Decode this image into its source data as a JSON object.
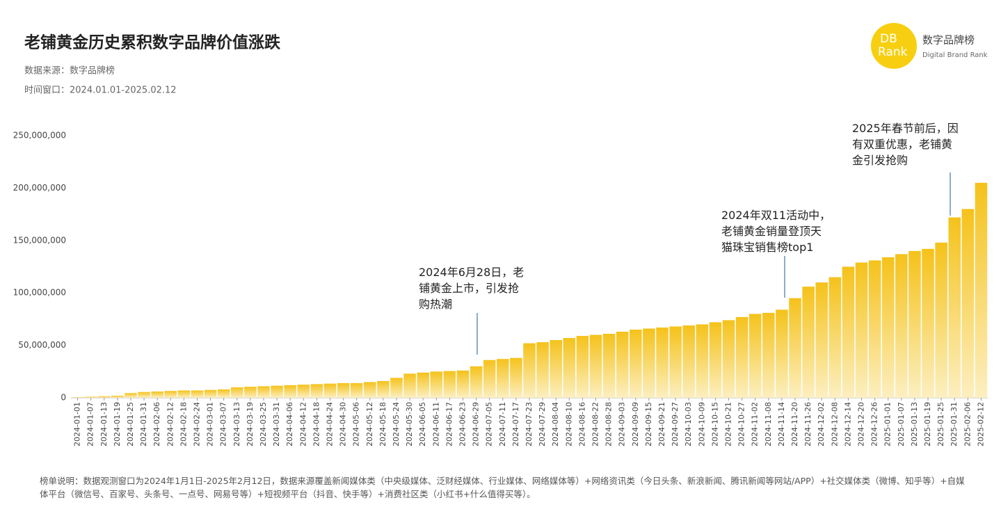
{
  "chart_data": {
    "type": "bar",
    "title": "老铺黄金历史累积数字品牌价值涨跌",
    "source": "数据来源：数字品牌榜",
    "time_window": "时间窗口：2024.01.01-2025.02.12",
    "categories": [
      "2024-01-01",
      "2024-01-07",
      "2024-01-13",
      "2024-01-19",
      "2024-01-25",
      "2024-01-31",
      "2024-02-06",
      "2024-02-12",
      "2024-02-18",
      "2024-02-24",
      "2024-03-01",
      "2024-03-07",
      "2024-03-13",
      "2024-03-19",
      "2024-03-25",
      "2024-03-31",
      "2024-04-06",
      "2024-04-12",
      "2024-04-18",
      "2024-04-24",
      "2024-04-30",
      "2024-05-06",
      "2024-05-12",
      "2024-05-18",
      "2024-05-24",
      "2024-05-30",
      "2024-06-05",
      "2024-06-11",
      "2024-06-17",
      "2024-06-23",
      "2024-06-29",
      "2024-07-05",
      "2024-07-11",
      "2024-07-17",
      "2024-07-23",
      "2024-07-29",
      "2024-08-04",
      "2024-08-10",
      "2024-08-16",
      "2024-08-22",
      "2024-08-28",
      "2024-09-03",
      "2024-09-09",
      "2024-09-15",
      "2024-09-21",
      "2024-09-27",
      "2024-10-03",
      "2024-10-09",
      "2024-10-15",
      "2024-10-21",
      "2024-10-27",
      "2024-11-02",
      "2024-11-08",
      "2024-11-14",
      "2024-11-20",
      "2024-11-26",
      "2024-12-02",
      "2024-12-08",
      "2024-12-14",
      "2024-12-20",
      "2024-12-26",
      "2025-01-01",
      "2025-01-07",
      "2025-01-13",
      "2025-01-19",
      "2025-01-25",
      "2025-01-31",
      "2025-02-06",
      "2025-02-12"
    ],
    "values": [
      500000,
      1000000,
      1500000,
      2000000,
      4500000,
      5500000,
      6000000,
      6500000,
      7000000,
      7000000,
      7500000,
      8000000,
      10000000,
      10500000,
      11000000,
      11500000,
      12000000,
      12500000,
      13000000,
      13500000,
      14000000,
      14000000,
      15000000,
      16000000,
      19000000,
      23000000,
      24000000,
      25000000,
      25500000,
      26000000,
      30000000,
      36000000,
      37000000,
      38000000,
      52000000,
      53000000,
      55000000,
      57000000,
      59000000,
      60000000,
      61000000,
      63000000,
      65000000,
      66000000,
      67000000,
      68000000,
      69000000,
      70000000,
      72000000,
      74000000,
      77000000,
      80000000,
      81000000,
      84000000,
      95000000,
      106000000,
      110000000,
      115000000,
      125000000,
      129000000,
      131000000,
      134000000,
      137000000,
      140000000,
      142000000,
      148000000,
      172000000,
      180000000,
      205000000
    ],
    "color": "#f5c21b",
    "ylim": [
      0,
      250000000
    ],
    "yticks": [
      0,
      {
        "value": 50000000,
        "label": "50,000,000"
      },
      {
        "value": 100000000,
        "label": "100,000,000"
      },
      {
        "value": 150000000,
        "label": "150,000,000"
      },
      {
        "value": 200000000,
        "label": "200,000,000"
      },
      {
        "value": 250000000,
        "label": "250,000,000"
      }
    ],
    "annotations": [
      "2024年6月28日，老\n铺黄金上市，引发抢\n购热潮",
      "2024年双11活动中，\n老铺黄金销量登顶天\n猫珠宝销售榜top1",
      "2025年春节前后，因\n有双重优惠，老铺黄\n金引发抢购"
    ],
    "note": "榜单说明：数据观测窗口为2024年1月1日-2025年2月12日，数据来源覆盖新闻媒体类（中央级媒体、泛财经媒体、行业媒体、网络媒体等）+网络资讯类（今日头条、新浪新闻、腾讯新闻等网站/APP）+社交媒体类（微博、知乎等）+自媒体平台（微信号、百家号、头条号、一点号、网易号等）+短视频平台（抖音、快手等）+消费社区类（小红书+什么值得买等）。"
  },
  "logo": {
    "line1": "DB",
    "line2": "Rank",
    "name": "数字品牌榜",
    "sub": "Digital Brand Rank"
  }
}
